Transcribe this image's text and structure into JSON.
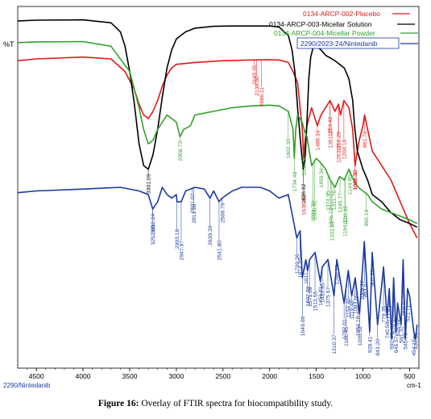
{
  "caption": {
    "label": "Figure 16:",
    "text": "Overlay of FTIR spectra for biocompatibility study."
  },
  "chart_data": {
    "type": "line",
    "ylabel": "%T",
    "xunit": "cm-1",
    "footer_label": "2290/Nintedanib",
    "xlim": [
      4700,
      400
    ],
    "x_reversed": true,
    "ylim": [
      0,
      100
    ],
    "x_ticks": [
      4500,
      4000,
      3500,
      3000,
      2500,
      2000,
      1500,
      1000,
      500
    ],
    "legend_position": "top-right",
    "series": [
      {
        "name": "0134-ARCP-002-Placebo",
        "color": "#e01a1a",
        "x": [
          4700,
          4500,
          4000,
          3700,
          3550,
          3450,
          3400,
          3350,
          3300,
          3250,
          3200,
          3150,
          3100,
          3050,
          3000,
          2800,
          2500,
          2200,
          2000,
          1900,
          1800,
          1750,
          1700,
          1650,
          1636,
          1620,
          1600,
          1550,
          1489,
          1450,
          1400,
          1353,
          1300,
          1262,
          1240,
          1204,
          1150,
          1110,
          1085,
          1060,
          1040,
          1000,
          982,
          950,
          900,
          800,
          700,
          600,
          500,
          420
        ],
        "y": [
          85,
          85.5,
          86,
          85.5,
          82,
          77,
          73,
          70,
          69,
          71,
          74,
          78,
          81,
          83,
          84,
          84.5,
          85,
          85.2,
          85.3,
          85.2,
          84.5,
          82,
          79,
          66,
          58,
          62,
          67,
          72,
          67,
          70,
          72,
          74,
          71,
          73,
          70,
          74,
          72,
          66,
          56,
          60,
          63,
          67,
          70,
          66,
          60,
          56,
          52,
          46,
          40,
          36
        ]
      },
      {
        "name": "0134-ARCP-003-Micellar Solution",
        "color": "#000000",
        "x": [
          4700,
          4500,
          4000,
          3700,
          3600,
          3550,
          3500,
          3450,
          3400,
          3350,
          3300,
          3250,
          3200,
          3150,
          3100,
          3050,
          3000,
          2900,
          2800,
          2600,
          2400,
          2200,
          2000,
          1900,
          1800,
          1760,
          1730,
          1700,
          1660,
          1640,
          1620,
          1600,
          1580,
          1560,
          1530,
          1500,
          1450,
          1400,
          1300,
          1200,
          1150,
          1110,
          1090,
          1060,
          1000,
          950,
          900,
          800,
          700,
          600,
          500,
          420
        ],
        "y": [
          96,
          96.2,
          96.3,
          95.5,
          93,
          89,
          82,
          73,
          62,
          56,
          55,
          59,
          66,
          75,
          83,
          88,
          91,
          93,
          94,
          94.5,
          94.6,
          94.6,
          94.6,
          94.3,
          92,
          88,
          82,
          72,
          60,
          55,
          58,
          68,
          80,
          86,
          89,
          89,
          88,
          86.5,
          85,
          83,
          80,
          74,
          67,
          60,
          55,
          52,
          48,
          46,
          43,
          41,
          40,
          39
        ]
      },
      {
        "name": "0134-ARCP-004-Micellar Powder",
        "color": "#33a02c",
        "x": [
          4700,
          4500,
          4000,
          3700,
          3500,
          3400,
          3350,
          3300,
          3250,
          3200,
          3150,
          3100,
          3000,
          2960,
          2920,
          2850,
          2800,
          2600,
          2400,
          2200,
          2000,
          1900,
          1800,
          1750,
          1736,
          1720,
          1700,
          1650,
          1630,
          1600,
          1550,
          1500,
          1460,
          1400,
          1350,
          1300,
          1250,
          1200,
          1150,
          1100,
          1050,
          1000,
          950,
          900,
          800,
          700,
          600,
          500,
          420
        ],
        "y": [
          90,
          90.2,
          90.3,
          89,
          82,
          72,
          66,
          62,
          63,
          66,
          68,
          70,
          68,
          64,
          66,
          67,
          70,
          71,
          72,
          72.5,
          72.7,
          72.5,
          71,
          66,
          58,
          66,
          70,
          68,
          66,
          64,
          56,
          58,
          57,
          55,
          52,
          50,
          53,
          52,
          55,
          52,
          50,
          49,
          48,
          46,
          44,
          43,
          42,
          41,
          40
        ]
      },
      {
        "name": "2290/2023-24/Nintedanib",
        "color": "#1a3a9e",
        "x": [
          4700,
          4500,
          4000,
          3600,
          3400,
          3300,
          3253,
          3200,
          3150,
          3100,
          3050,
          3000,
          2993,
          2948,
          2900,
          2800,
          2700,
          2639,
          2600,
          2542,
          2509,
          2400,
          2300,
          2200,
          2100,
          2000,
          1900,
          1800,
          1709,
          1674,
          1649,
          1612,
          1592,
          1572,
          1513,
          1457,
          1436,
          1375,
          1310,
          1280,
          1202,
          1157,
          1120,
          1083,
          1036,
          985,
          928,
          901,
          843,
          779,
          741,
          718,
          692,
          671,
          646,
          629,
          591,
          569,
          545,
          522,
          500,
          454,
          435,
          420
        ],
        "y": [
          48.5,
          49,
          49.5,
          50,
          49,
          48,
          44,
          46,
          50,
          48,
          47,
          48,
          46,
          46,
          49,
          50,
          49.5,
          47,
          49,
          46,
          47,
          49,
          50,
          50,
          50,
          49,
          47,
          48,
          36,
          38,
          25,
          30,
          27,
          30,
          32,
          24,
          28,
          30,
          20,
          30,
          18,
          27,
          20,
          25,
          15,
          35,
          10,
          32,
          12,
          28,
          14,
          22,
          8,
          25,
          10,
          18,
          12,
          30,
          8,
          22,
          20,
          10,
          8,
          12
        ]
      }
    ],
    "peak_labels": [
      {
        "series": "0134-ARCP-002-Placebo",
        "labels": [
          "2165.05",
          "2138.50",
          "2086.11",
          "1636.88",
          "1488.34",
          "1353.42",
          "1262.29",
          "1204.16",
          "1085.00",
          "981.70",
          "1351.27",
          "1263.01",
          "1084.32"
        ]
      },
      {
        "series": "0134-ARCP-003-Micellar Solution",
        "labels": [
          "3301.09",
          "1636.82"
        ]
      },
      {
        "series": "0134-ARCP-004-Micellar Powder",
        "labels": [
          "2958.73",
          "1734.48",
          "1632.58",
          "1533.78",
          "1450.34",
          "1374.95",
          "1346.72",
          "1333.33",
          "1311.76",
          "1245.77",
          "1190.95",
          "1194.11",
          "1144.60",
          "965.19",
          "1802.30",
          "1520.62"
        ]
      },
      {
        "series": "2290/2023-24/Nintedanib",
        "labels": [
          "3252.24",
          "3252.60",
          "2993.18",
          "2947.97",
          "2831.02",
          "2811.90",
          "2639.39",
          "2541.80",
          "2508.79",
          "1709.36",
          "1674.20",
          "1649.08",
          "1611.77",
          "1592.39",
          "1571.58",
          "1513.55",
          "1456.81",
          "1435.95",
          "1375.67",
          "1310.37",
          "1280.23",
          "1202.01",
          "1156.80",
          "1181.45",
          "1119.48",
          "1083.60",
          "1035.52",
          "984.57",
          "928.41",
          "901.33",
          "843.20",
          "779.35",
          "740.58",
          "717.62",
          "692.45",
          "670.92",
          "645.57",
          "628.69",
          "591.32",
          "569.07",
          "545.70",
          "521.71",
          "454.15",
          "434.55",
          "1008.77",
          "1054.18"
        ]
      }
    ]
  }
}
